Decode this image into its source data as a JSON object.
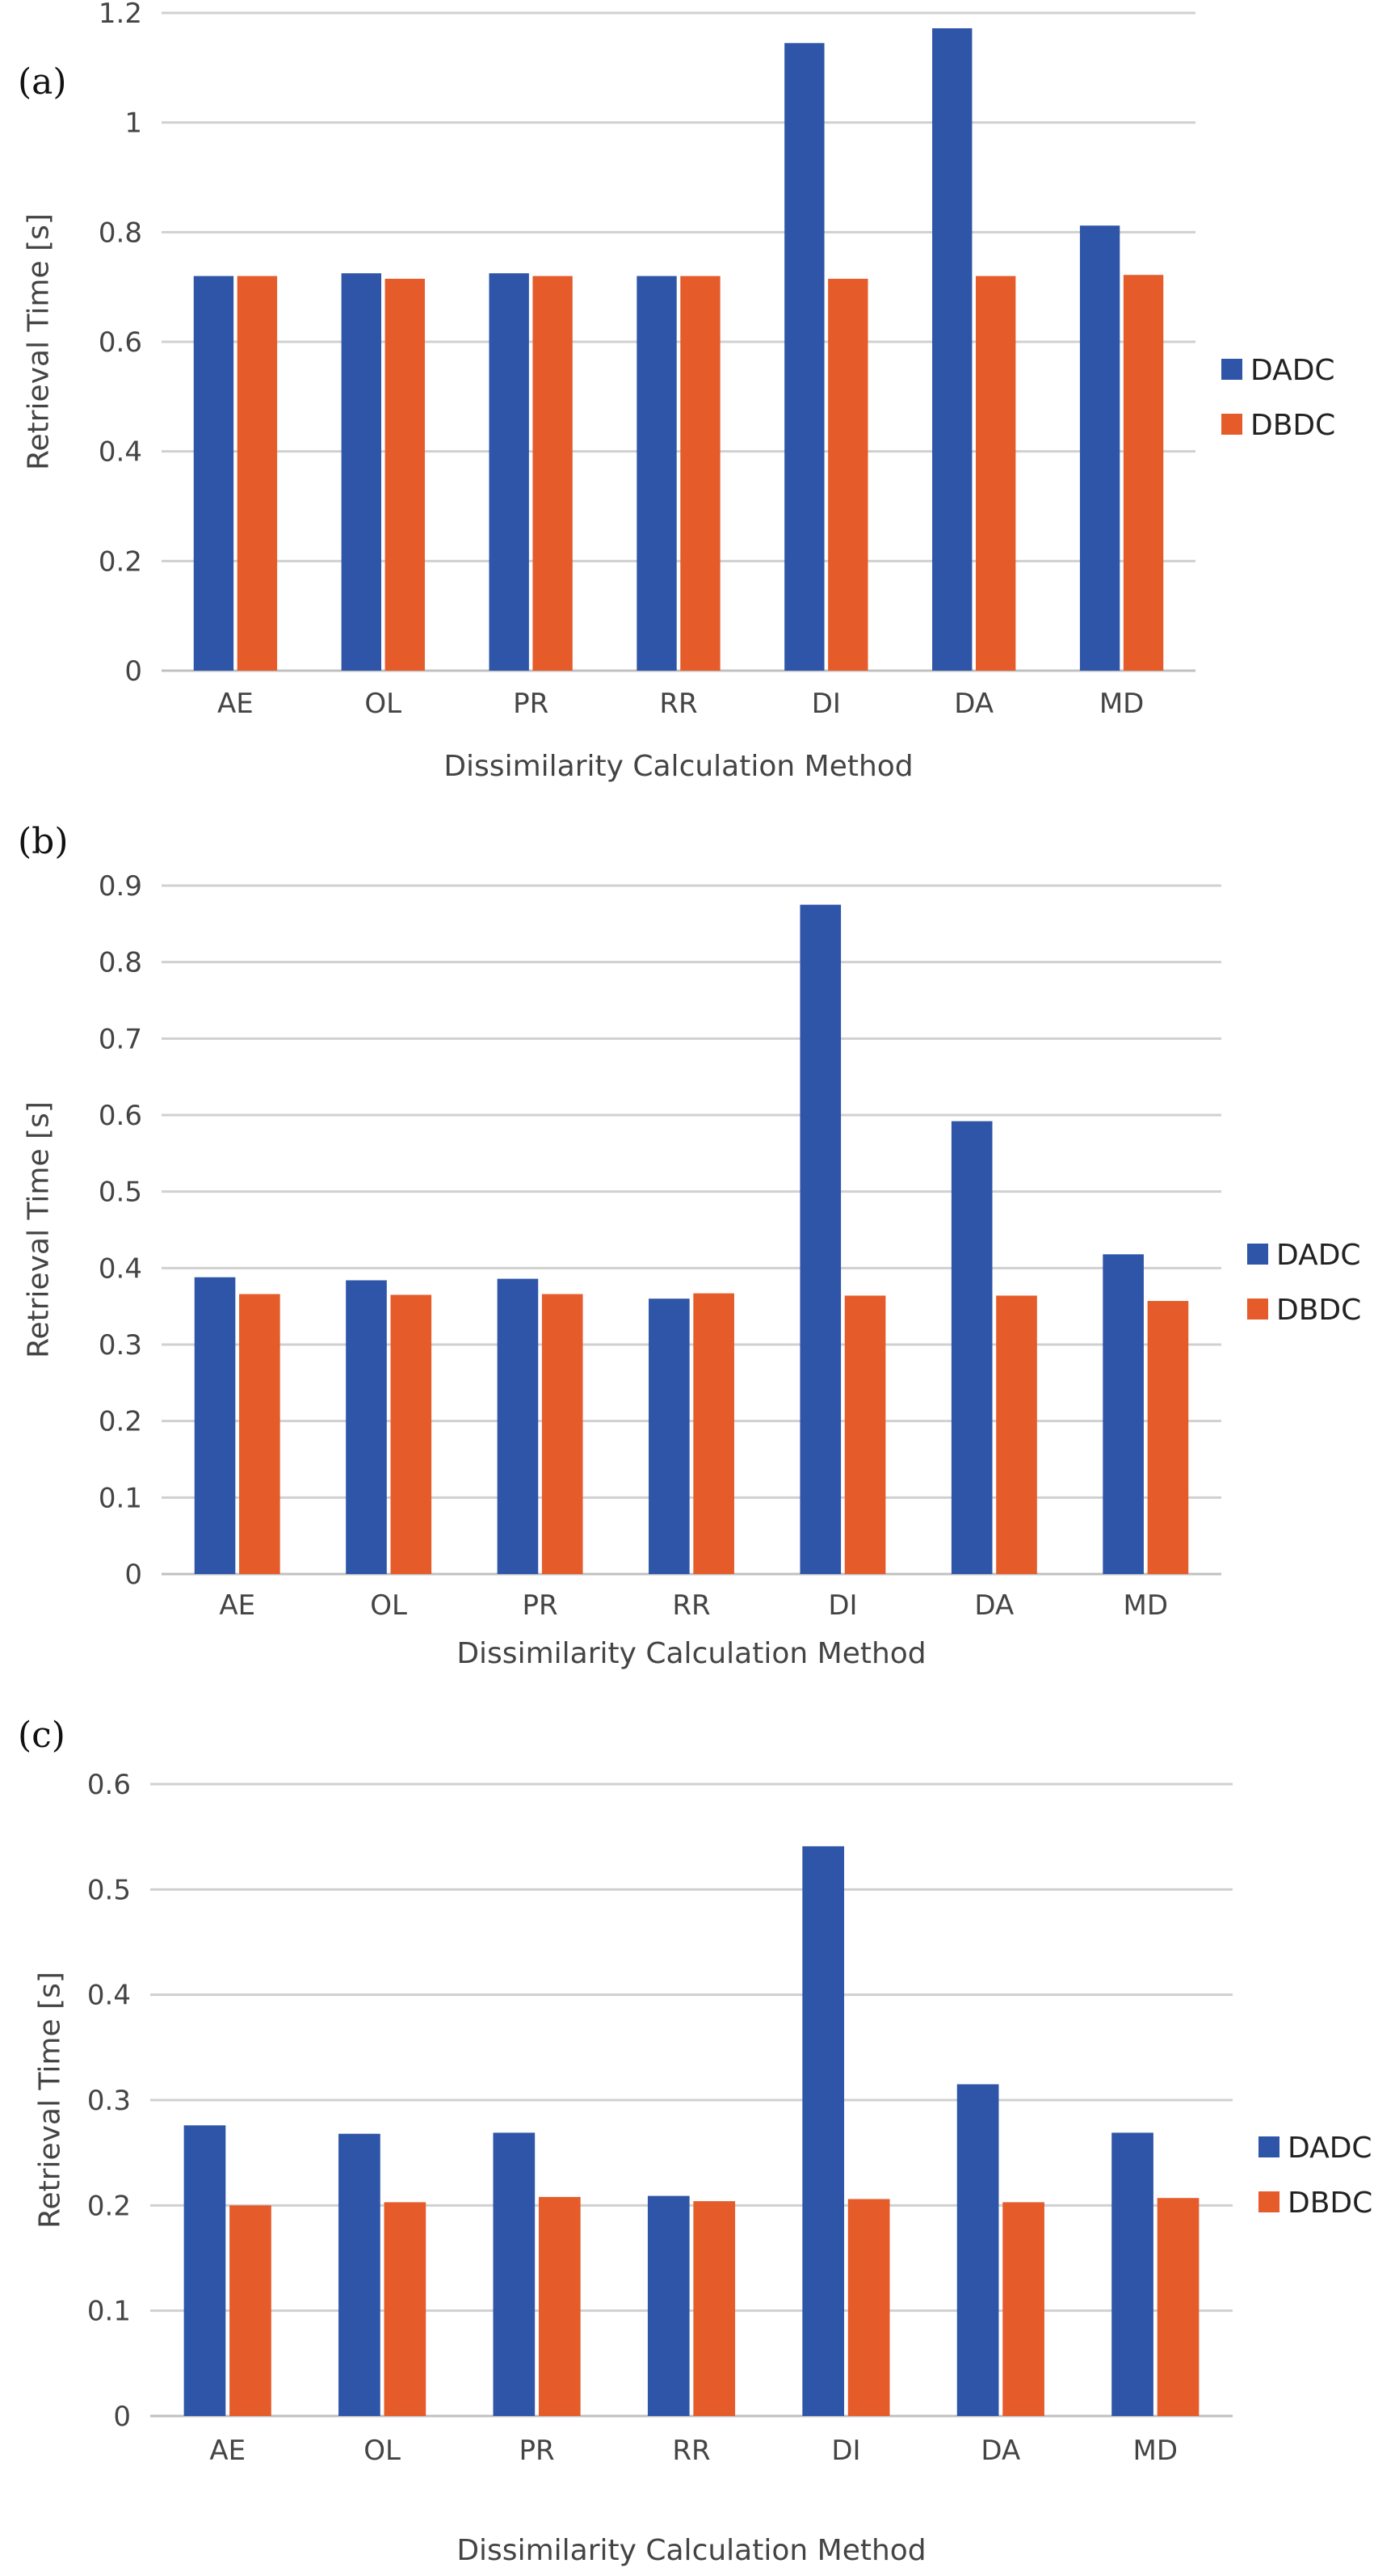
{
  "chart_data": [
    {
      "type": "bar",
      "panel_label": "(a)",
      "categories": [
        "AE",
        "OL",
        "PR",
        "RR",
        "DI",
        "DA",
        "MD"
      ],
      "series": [
        {
          "name": "DADC",
          "color": "#2e55a8",
          "values": [
            0.72,
            0.725,
            0.725,
            0.72,
            1.145,
            1.172,
            0.812
          ]
        },
        {
          "name": "DBDC",
          "color": "#e55b2a",
          "values": [
            0.72,
            0.715,
            0.72,
            0.72,
            0.715,
            0.72,
            0.722
          ]
        }
      ],
      "xlabel": "Dissimilarity Calculation Method",
      "ylabel": "Retrieval Time [s]",
      "ylim": [
        0,
        1.2
      ],
      "yticks": [
        "0",
        "0.2",
        "0.4",
        "0.6",
        "0.8",
        "1",
        "1.2"
      ],
      "grid": true,
      "legend_position": "right"
    },
    {
      "type": "bar",
      "panel_label": "(b)",
      "categories": [
        "AE",
        "OL",
        "PR",
        "RR",
        "DI",
        "DA",
        "MD"
      ],
      "series": [
        {
          "name": "DADC",
          "color": "#2e55a8",
          "values": [
            0.388,
            0.384,
            0.386,
            0.36,
            0.875,
            0.592,
            0.418
          ]
        },
        {
          "name": "DBDC",
          "color": "#e55b2a",
          "values": [
            0.366,
            0.365,
            0.366,
            0.367,
            0.364,
            0.364,
            0.357
          ]
        }
      ],
      "xlabel": "Dissimilarity Calculation Method",
      "ylabel": "Retrieval Time [s]",
      "ylim": [
        0,
        0.9
      ],
      "yticks": [
        "0",
        "0.1",
        "0.2",
        "0.3",
        "0.4",
        "0.5",
        "0.6",
        "0.7",
        "0.8",
        "0.9"
      ],
      "grid": true,
      "legend_position": "right"
    },
    {
      "type": "bar",
      "panel_label": "(c)",
      "categories": [
        "AE",
        "OL",
        "PR",
        "RR",
        "DI",
        "DA",
        "MD"
      ],
      "series": [
        {
          "name": "DADC",
          "color": "#2e55a8",
          "values": [
            0.276,
            0.268,
            0.269,
            0.209,
            0.541,
            0.315,
            0.269
          ]
        },
        {
          "name": "DBDC",
          "color": "#e55b2a",
          "values": [
            0.2,
            0.203,
            0.208,
            0.204,
            0.206,
            0.203,
            0.207
          ]
        }
      ],
      "xlabel": "Dissimilarity Calculation Method",
      "ylabel": "Retrieval Time [s]",
      "ylim": [
        0,
        0.6
      ],
      "yticks": [
        "0",
        "0.1",
        "0.2",
        "0.3",
        "0.4",
        "0.5",
        "0.6"
      ],
      "grid": true,
      "legend_position": "right"
    }
  ]
}
